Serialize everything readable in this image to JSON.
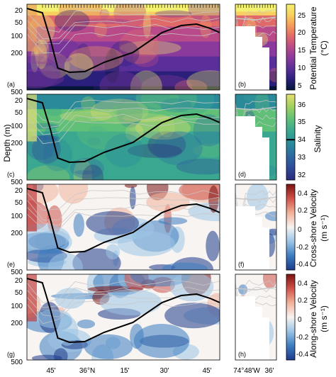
{
  "figure": {
    "ylabel": "Depth (m)",
    "depth_ticks": [
      "20",
      "50",
      "100",
      "200",
      "500"
    ],
    "lat_ticks": [
      "45'",
      "36°N",
      "15'",
      "30'",
      "45'"
    ],
    "lon_ticks": [
      "74°48'W",
      "36'"
    ]
  },
  "panels": [
    {
      "id": "a",
      "label": "(a)",
      "colormap": "thermal"
    },
    {
      "id": "b",
      "label": "(b)",
      "colormap": "thermal"
    },
    {
      "id": "c",
      "label": "(c)",
      "colormap": "haline"
    },
    {
      "id": "d",
      "label": "(d)",
      "colormap": "haline"
    },
    {
      "id": "e",
      "label": "(e)",
      "colormap": "balance"
    },
    {
      "id": "f",
      "label": "(f)",
      "colormap": "balance"
    },
    {
      "id": "g",
      "label": "(g)",
      "colormap": "balance"
    },
    {
      "id": "h",
      "label": "(h)",
      "colormap": "balance"
    }
  ],
  "colorbars": [
    {
      "label": "Potential Temperature",
      "unit": "(°C)",
      "ticks": [
        "25",
        "20",
        "15",
        "10",
        "5"
      ],
      "colormap": "thermal",
      "marker": "",
      "range": [
        5,
        28
      ]
    },
    {
      "label": "Salinity",
      "unit": "",
      "ticks": [
        "36",
        "35",
        "34",
        "33",
        "32"
      ],
      "colormap": "haline",
      "marker": "34",
      "range": [
        31.7,
        36.6
      ]
    },
    {
      "label": "Cross-shore Velocity",
      "unit": "(m s⁻¹)",
      "ticks": [
        "0.4",
        "0.2",
        "0",
        "-0.2",
        "-0.4"
      ],
      "colormap": "balance",
      "marker": "",
      "range": [
        -0.5,
        0.5
      ]
    },
    {
      "label": "Along-shore Velocity",
      "unit": "(m s⁻¹)",
      "ticks": [
        "0.4",
        "0.2",
        "0",
        "-0.2",
        "-0.4"
      ],
      "colormap": "balance",
      "marker": "",
      "range": [
        -0.5,
        0.5
      ]
    }
  ],
  "colors": {
    "thermal": [
      "#06163a",
      "#2a1f7a",
      "#5a2f9a",
      "#8a3a9a",
      "#b84a8a",
      "#e06a6a",
      "#f59a5a",
      "#f8d060",
      "#f4f070"
    ],
    "haline": [
      "#2a2a7a",
      "#2e4a9a",
      "#2d6aa0",
      "#2a8a9a",
      "#3aa890",
      "#60c078",
      "#a0d060",
      "#e8e070"
    ],
    "balance": [
      "#1e3a8a",
      "#3c7cc0",
      "#9cc4e4",
      "#f7f4f2",
      "#f2b29a",
      "#d0524a",
      "#7a1212"
    ],
    "mixed_layer_line": "#000000",
    "isoline": "#c8c8c8"
  }
}
